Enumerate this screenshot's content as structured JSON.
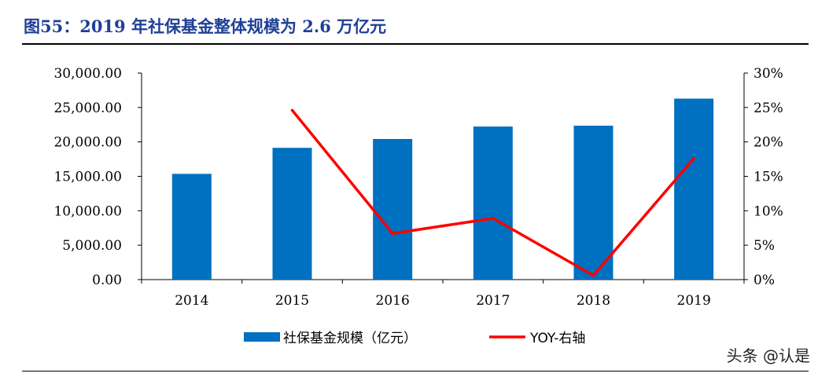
{
  "figure": {
    "title": "图55：2019 年社保基金整体规模为 2.6 万亿元",
    "watermark": "头条 @认是"
  },
  "colors": {
    "title": "#1f3f97",
    "bar": "#0070c0",
    "line": "#ff0000",
    "axis": "#000000"
  },
  "chart_data": {
    "type": "bar",
    "categories": [
      "2014",
      "2015",
      "2016",
      "2017",
      "2018",
      "2019"
    ],
    "series": [
      {
        "name": "社保基金规模（亿元）",
        "type": "bar",
        "axis": "left",
        "values": [
          15356.39,
          19138.21,
          20423.28,
          22231.24,
          22353.78,
          26285.66
        ]
      },
      {
        "name": "YOY-右轴",
        "type": "line",
        "axis": "right",
        "values": [
          null,
          0.246,
          0.067,
          0.089,
          0.006,
          0.176
        ]
      }
    ],
    "left_axis": {
      "min": 0,
      "max": 30000,
      "step": 5000,
      "tick_labels": [
        "0.00",
        "5,000.00",
        "10,000.00",
        "15,000.00",
        "20,000.00",
        "25,000.00",
        "30,000.00"
      ]
    },
    "right_axis": {
      "min": 0,
      "max": 0.3,
      "step": 0.05,
      "tick_labels": [
        "0%",
        "5%",
        "10%",
        "15%",
        "20%",
        "25%",
        "30%"
      ]
    },
    "legend_position": "bottom",
    "grid": false
  }
}
